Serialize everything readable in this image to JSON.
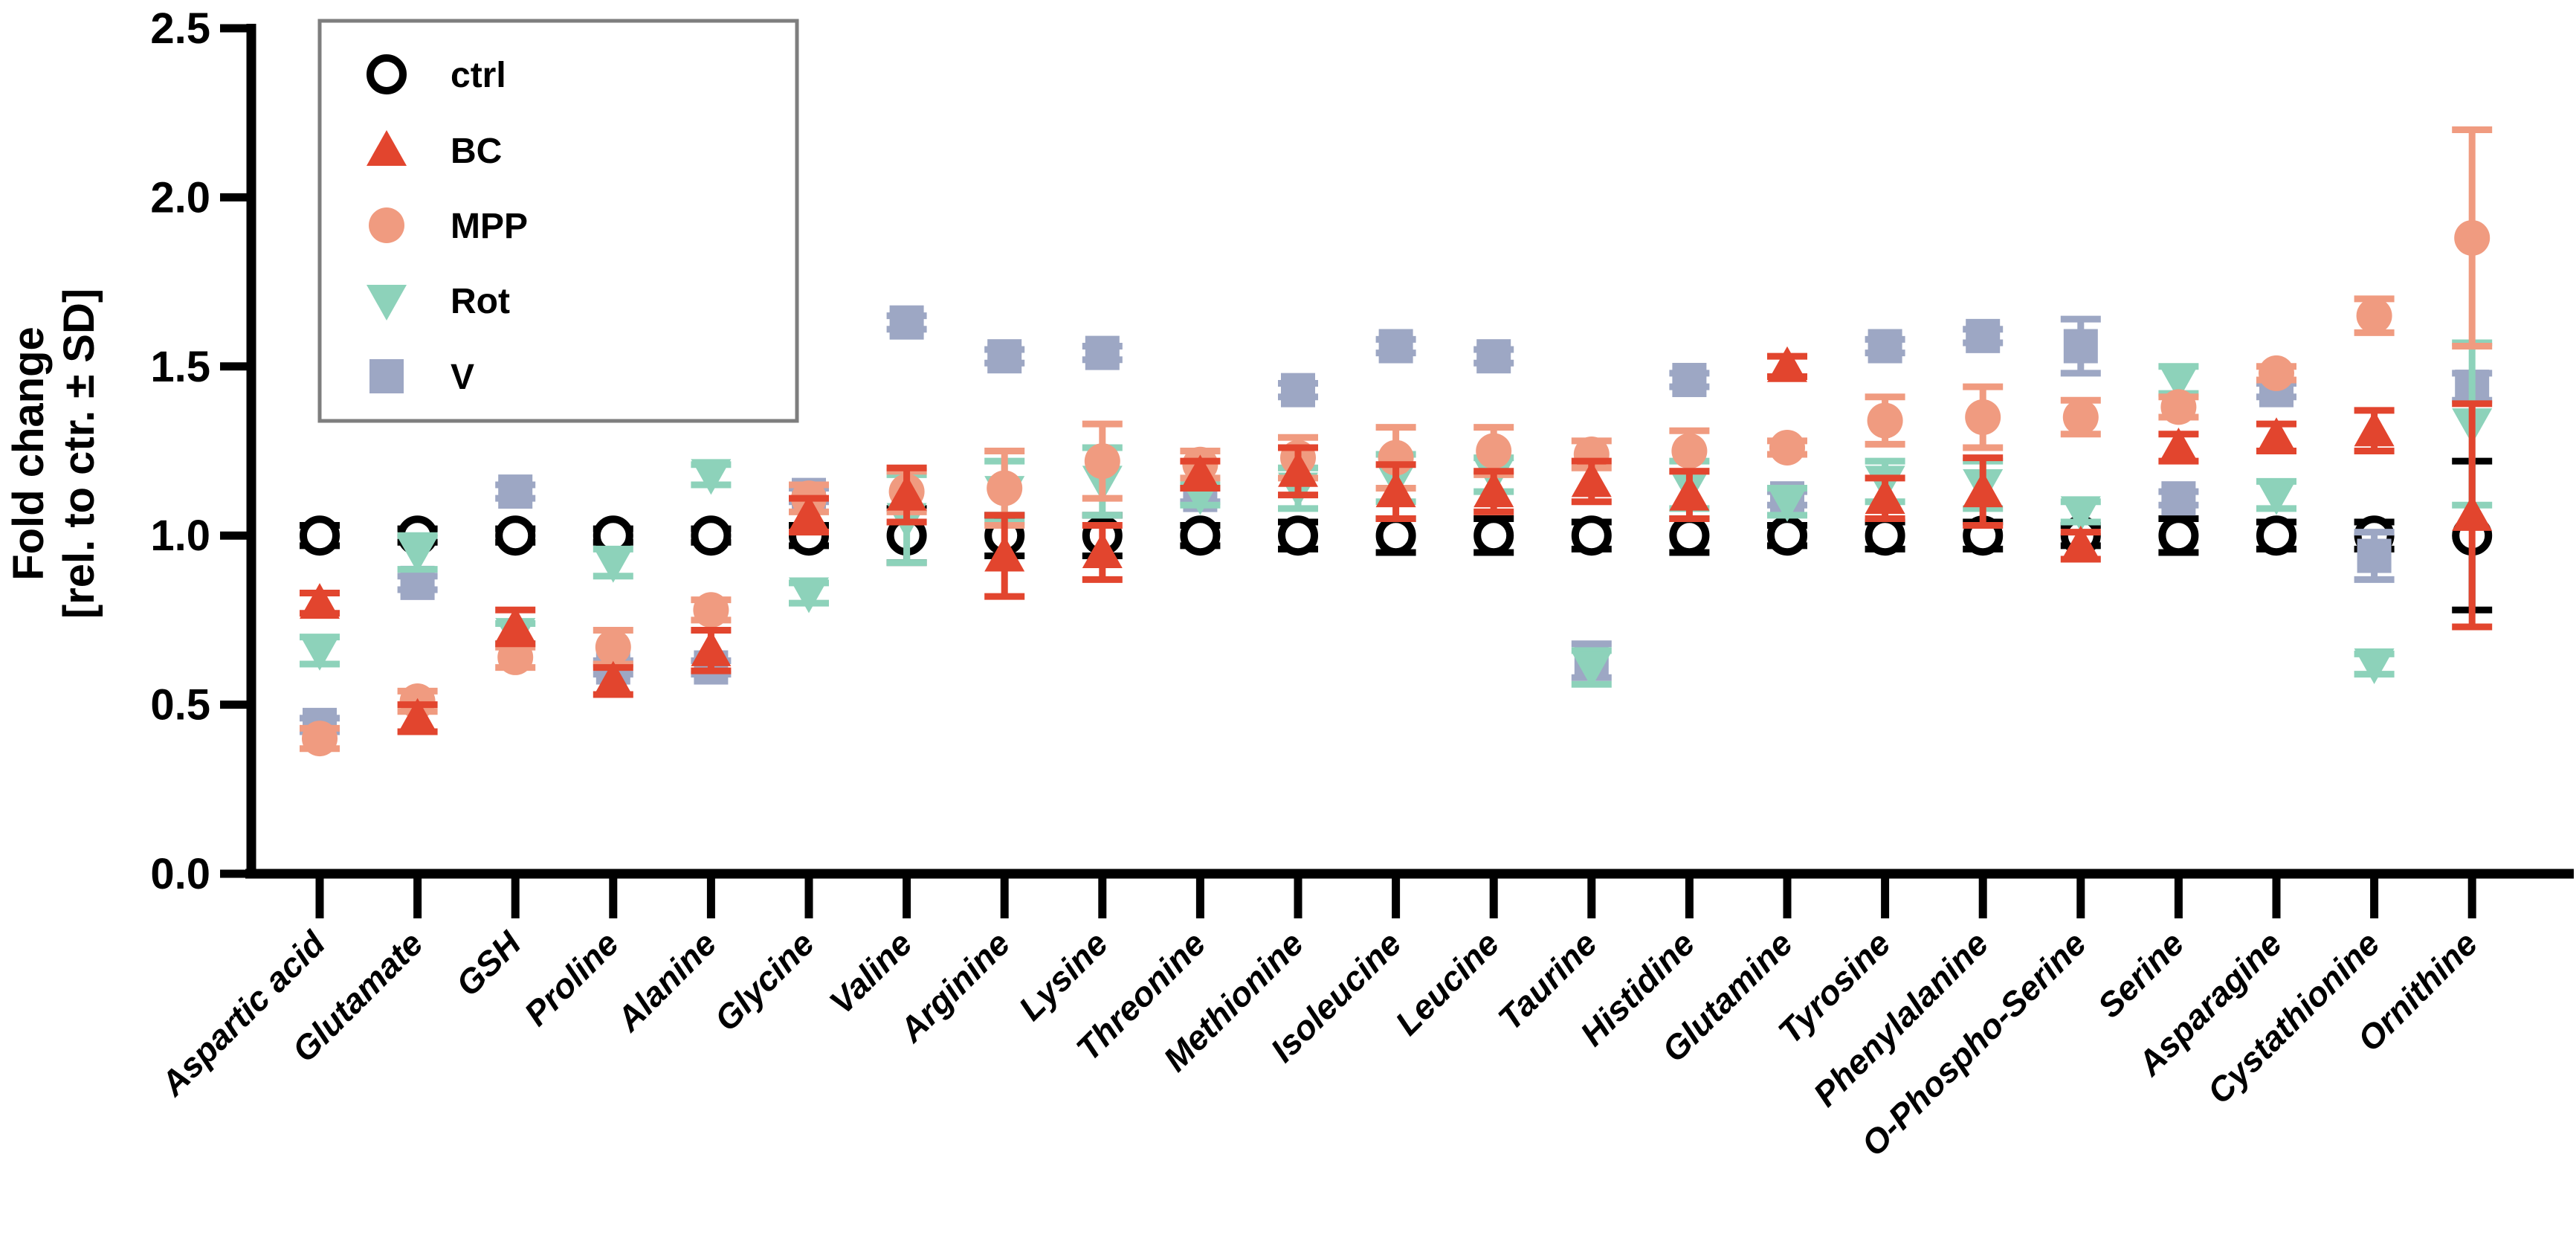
{
  "chart_data": {
    "type": "scatter",
    "title": "",
    "ylabel_line1": "Fold change",
    "ylabel_line2": "[rel. to ctr. ± SD]",
    "xlabel": "",
    "ylim": [
      0.0,
      2.5
    ],
    "yticks": [
      "0.0",
      "0.5",
      "1.0",
      "1.5",
      "2.0",
      "2.5"
    ],
    "grid": false,
    "legend_position": "top-left",
    "legend_border_color": "#7e7e7e",
    "axis_color": "#000000",
    "categories": [
      "Aspartic acid",
      "Glutamate",
      "GSH",
      "Proline",
      "Alanine",
      "Glycine",
      "Valine",
      "Arginine",
      "Lysine",
      "Threonine",
      "Methionine",
      "Isoleucine",
      "Leucine",
      "Taurine",
      "Histidine",
      "Glutamine",
      "Tyrosine",
      "Phenylalanine",
      "O-Phospho-Serine",
      "Serine",
      "Asparagine",
      "Cystathionine",
      "Ornithine"
    ],
    "series": [
      {
        "name": "ctrl",
        "marker": "open-circle",
        "color": "#000000",
        "fill": "#ffffff",
        "values": [
          1.0,
          1.0,
          1.0,
          1.0,
          1.0,
          1.0,
          1.0,
          1.0,
          1.0,
          1.0,
          1.0,
          1.0,
          1.0,
          1.0,
          1.0,
          1.0,
          1.0,
          1.0,
          1.0,
          1.0,
          1.0,
          1.0,
          1.0
        ],
        "sd": [
          0.03,
          0.02,
          0.02,
          0.02,
          0.02,
          0.03,
          0.08,
          0.06,
          0.06,
          0.03,
          0.04,
          0.05,
          0.05,
          0.04,
          0.05,
          0.03,
          0.04,
          0.04,
          0.03,
          0.05,
          0.04,
          0.04,
          0.22
        ]
      },
      {
        "name": "BC",
        "marker": "triangle-up",
        "color": "#E2452E",
        "values": [
          0.8,
          0.46,
          0.73,
          0.57,
          0.66,
          1.06,
          1.12,
          0.94,
          0.95,
          1.18,
          1.19,
          1.13,
          1.13,
          1.16,
          1.12,
          1.5,
          1.11,
          1.13,
          0.97,
          1.26,
          1.29,
          1.31,
          1.06
        ],
        "sd": [
          0.03,
          0.04,
          0.05,
          0.04,
          0.06,
          0.05,
          0.08,
          0.12,
          0.08,
          0.04,
          0.07,
          0.08,
          0.06,
          0.06,
          0.07,
          0.03,
          0.06,
          0.1,
          0.04,
          0.04,
          0.04,
          0.06,
          0.33
        ]
      },
      {
        "name": "MPP",
        "marker": "circle",
        "color": "#F09B80",
        "values": [
          0.4,
          0.51,
          0.64,
          0.67,
          0.78,
          1.11,
          1.13,
          1.14,
          1.22,
          1.21,
          1.23,
          1.23,
          1.25,
          1.24,
          1.25,
          1.26,
          1.34,
          1.35,
          1.35,
          1.38,
          1.48,
          1.65,
          1.88
        ],
        "sd": [
          0.03,
          0.03,
          0.03,
          0.05,
          0.03,
          0.04,
          0.06,
          0.11,
          0.11,
          0.04,
          0.06,
          0.09,
          0.07,
          0.04,
          0.06,
          0.02,
          0.07,
          0.09,
          0.05,
          0.03,
          0.02,
          0.05,
          0.32
        ]
      },
      {
        "name": "Rot",
        "marker": "triangle-down",
        "color": "#8DD2BA",
        "values": [
          0.66,
          0.95,
          0.71,
          0.92,
          1.18,
          0.83,
          1.05,
          1.13,
          1.16,
          1.12,
          1.14,
          1.17,
          1.18,
          0.61,
          1.15,
          1.1,
          1.16,
          1.15,
          1.07,
          1.46,
          1.12,
          0.62,
          1.33
        ],
        "sd": [
          0.04,
          0.05,
          0.03,
          0.04,
          0.03,
          0.03,
          0.13,
          0.09,
          0.1,
          0.03,
          0.06,
          0.07,
          0.05,
          0.05,
          0.07,
          0.04,
          0.06,
          0.07,
          0.03,
          0.04,
          0.04,
          0.03,
          0.24
        ]
      },
      {
        "name": "V",
        "marker": "square",
        "color": "#9DA7C4",
        "values": [
          0.44,
          0.86,
          1.13,
          0.61,
          0.61,
          1.12,
          1.63,
          1.53,
          1.54,
          1.12,
          1.43,
          1.56,
          1.53,
          0.63,
          1.46,
          1.11,
          1.56,
          1.59,
          1.56,
          1.11,
          1.43,
          0.94,
          1.44
        ],
        "sd": [
          0.02,
          0.02,
          0.02,
          0.02,
          0.02,
          0.02,
          0.02,
          0.02,
          0.02,
          0.02,
          0.02,
          0.02,
          0.02,
          0.05,
          0.02,
          0.02,
          0.02,
          0.02,
          0.08,
          0.02,
          0.02,
          0.07,
          0.04
        ]
      }
    ],
    "legend": [
      "ctrl",
      "BC",
      "MPP",
      "Rot",
      "V"
    ]
  }
}
